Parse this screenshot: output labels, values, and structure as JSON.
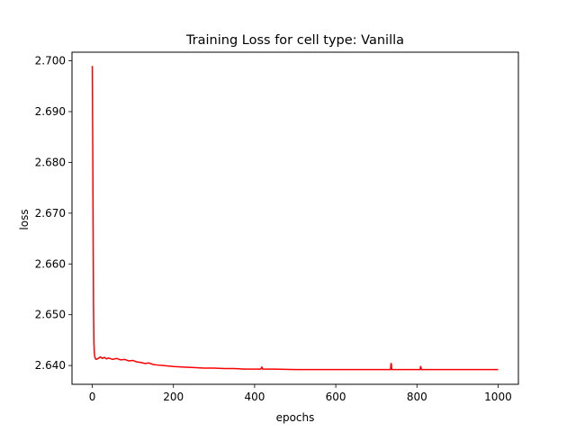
{
  "chart_data": {
    "type": "line",
    "title": "Training Loss for cell type: Vanilla",
    "xlabel": "epochs",
    "ylabel": "loss",
    "xlim": [
      -50,
      1050
    ],
    "ylim": [
      2.6363,
      2.7017
    ],
    "x_ticks": [
      0,
      200,
      400,
      600,
      800,
      1000
    ],
    "y_ticks": [
      2.64,
      2.65,
      2.66,
      2.67,
      2.68,
      2.69,
      2.7
    ],
    "x_tick_labels": [
      "0",
      "200",
      "400",
      "600",
      "800",
      "1000"
    ],
    "y_tick_labels": [
      "2.640",
      "2.650",
      "2.660",
      "2.670",
      "2.680",
      "2.690",
      "2.700"
    ],
    "grid": false,
    "series": [
      {
        "color": "#ff0000",
        "x": [
          0,
          1,
          2,
          3,
          4,
          5,
          6,
          8,
          10,
          15,
          20,
          25,
          30,
          35,
          40,
          50,
          60,
          70,
          80,
          90,
          100,
          110,
          120,
          130,
          140,
          150,
          160,
          175,
          200,
          225,
          250,
          275,
          300,
          325,
          350,
          375,
          400,
          415,
          418,
          420,
          425,
          450,
          500,
          550,
          600,
          650,
          700,
          735,
          736,
          737,
          738,
          739,
          740,
          750,
          800,
          808,
          809,
          810,
          811,
          812,
          850,
          900,
          950,
          1000
        ],
        "y": [
          2.699,
          2.685,
          2.668,
          2.652,
          2.6445,
          2.6425,
          2.6418,
          2.6413,
          2.6412,
          2.6414,
          2.6417,
          2.6414,
          2.6416,
          2.6413,
          2.6415,
          2.6412,
          2.6414,
          2.6411,
          2.6412,
          2.6409,
          2.641,
          2.6407,
          2.6406,
          2.6404,
          2.6405,
          2.6402,
          2.6401,
          2.64,
          2.6398,
          2.6397,
          2.6396,
          2.6395,
          2.6395,
          2.6394,
          2.6394,
          2.6393,
          2.6393,
          2.6393,
          2.6397,
          2.6393,
          2.6393,
          2.6393,
          2.6392,
          2.6392,
          2.6392,
          2.6392,
          2.6392,
          2.6392,
          2.6404,
          2.6403,
          2.6392,
          2.6392,
          2.6392,
          2.6392,
          2.6392,
          2.6392,
          2.6398,
          2.6397,
          2.6392,
          2.6392,
          2.6392,
          2.6392,
          2.6392,
          2.6392
        ]
      }
    ]
  }
}
